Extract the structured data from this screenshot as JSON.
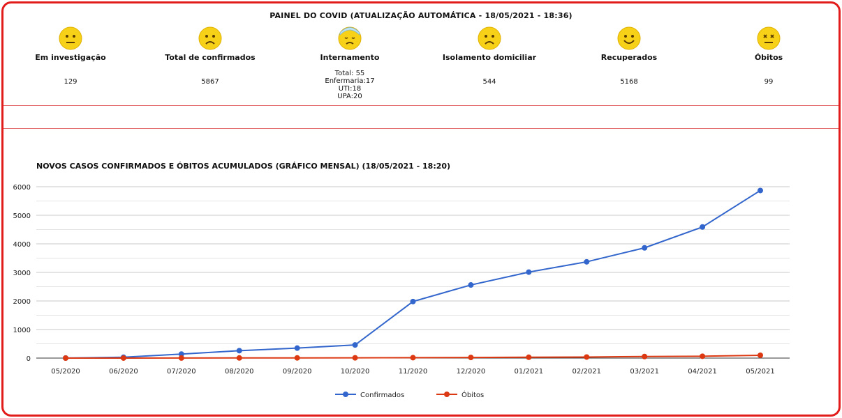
{
  "panel": {
    "title": "PAINEL DO COVID (ATUALIZAÇÃO AUTOMÁTICA - 18/05/2021 - 18:36)",
    "stats": [
      {
        "label": "Em investigação",
        "value": "129",
        "icon": "neutral-face-icon"
      },
      {
        "label": "Total de confirmados",
        "value": "5867",
        "icon": "sad-face-icon"
      },
      {
        "label": "Internamento",
        "lines": [
          "Total: 55",
          "Enfermaria:17",
          "UTI:18",
          "UPA:20"
        ],
        "icon": "bandaged-face-icon"
      },
      {
        "label": "Isolamento domiciliar",
        "value": "544",
        "icon": "sad-face-icon"
      },
      {
        "label": "Recuperados",
        "value": "5168",
        "icon": "smile-face-icon"
      },
      {
        "label": "Óbitos",
        "value": "99",
        "icon": "dead-face-icon"
      }
    ]
  },
  "colors": {
    "frame": "#e21b1b",
    "confirmados": "#3366cc",
    "obitos": "#dc3912",
    "emoji": "#f7d117"
  },
  "chart_data": {
    "type": "line",
    "title": "NOVOS CASOS CONFIRMADOS E ÓBITOS ACUMULADOS (GRÁFICO MENSAL) (18/05/2021 - 18:20)",
    "categories": [
      "05/2020",
      "06/2020",
      "07/2020",
      "08/2020",
      "09/2020",
      "10/2020",
      "11/2020",
      "12/2020",
      "01/2021",
      "02/2021",
      "03/2021",
      "04/2021",
      "05/2021"
    ],
    "series": [
      {
        "name": "Confirmados",
        "values": [
          2,
          30,
          140,
          260,
          350,
          460,
          1980,
          2560,
          3010,
          3370,
          3860,
          4590,
          5867
        ]
      },
      {
        "name": "Óbitos",
        "values": [
          0,
          1,
          3,
          5,
          7,
          9,
          14,
          22,
          30,
          38,
          55,
          65,
          99
        ]
      }
    ],
    "ylim": [
      0,
      6000
    ],
    "yticks": [
      0,
      1000,
      2000,
      3000,
      4000,
      5000,
      6000
    ],
    "grid": true,
    "legend": "bottom"
  }
}
